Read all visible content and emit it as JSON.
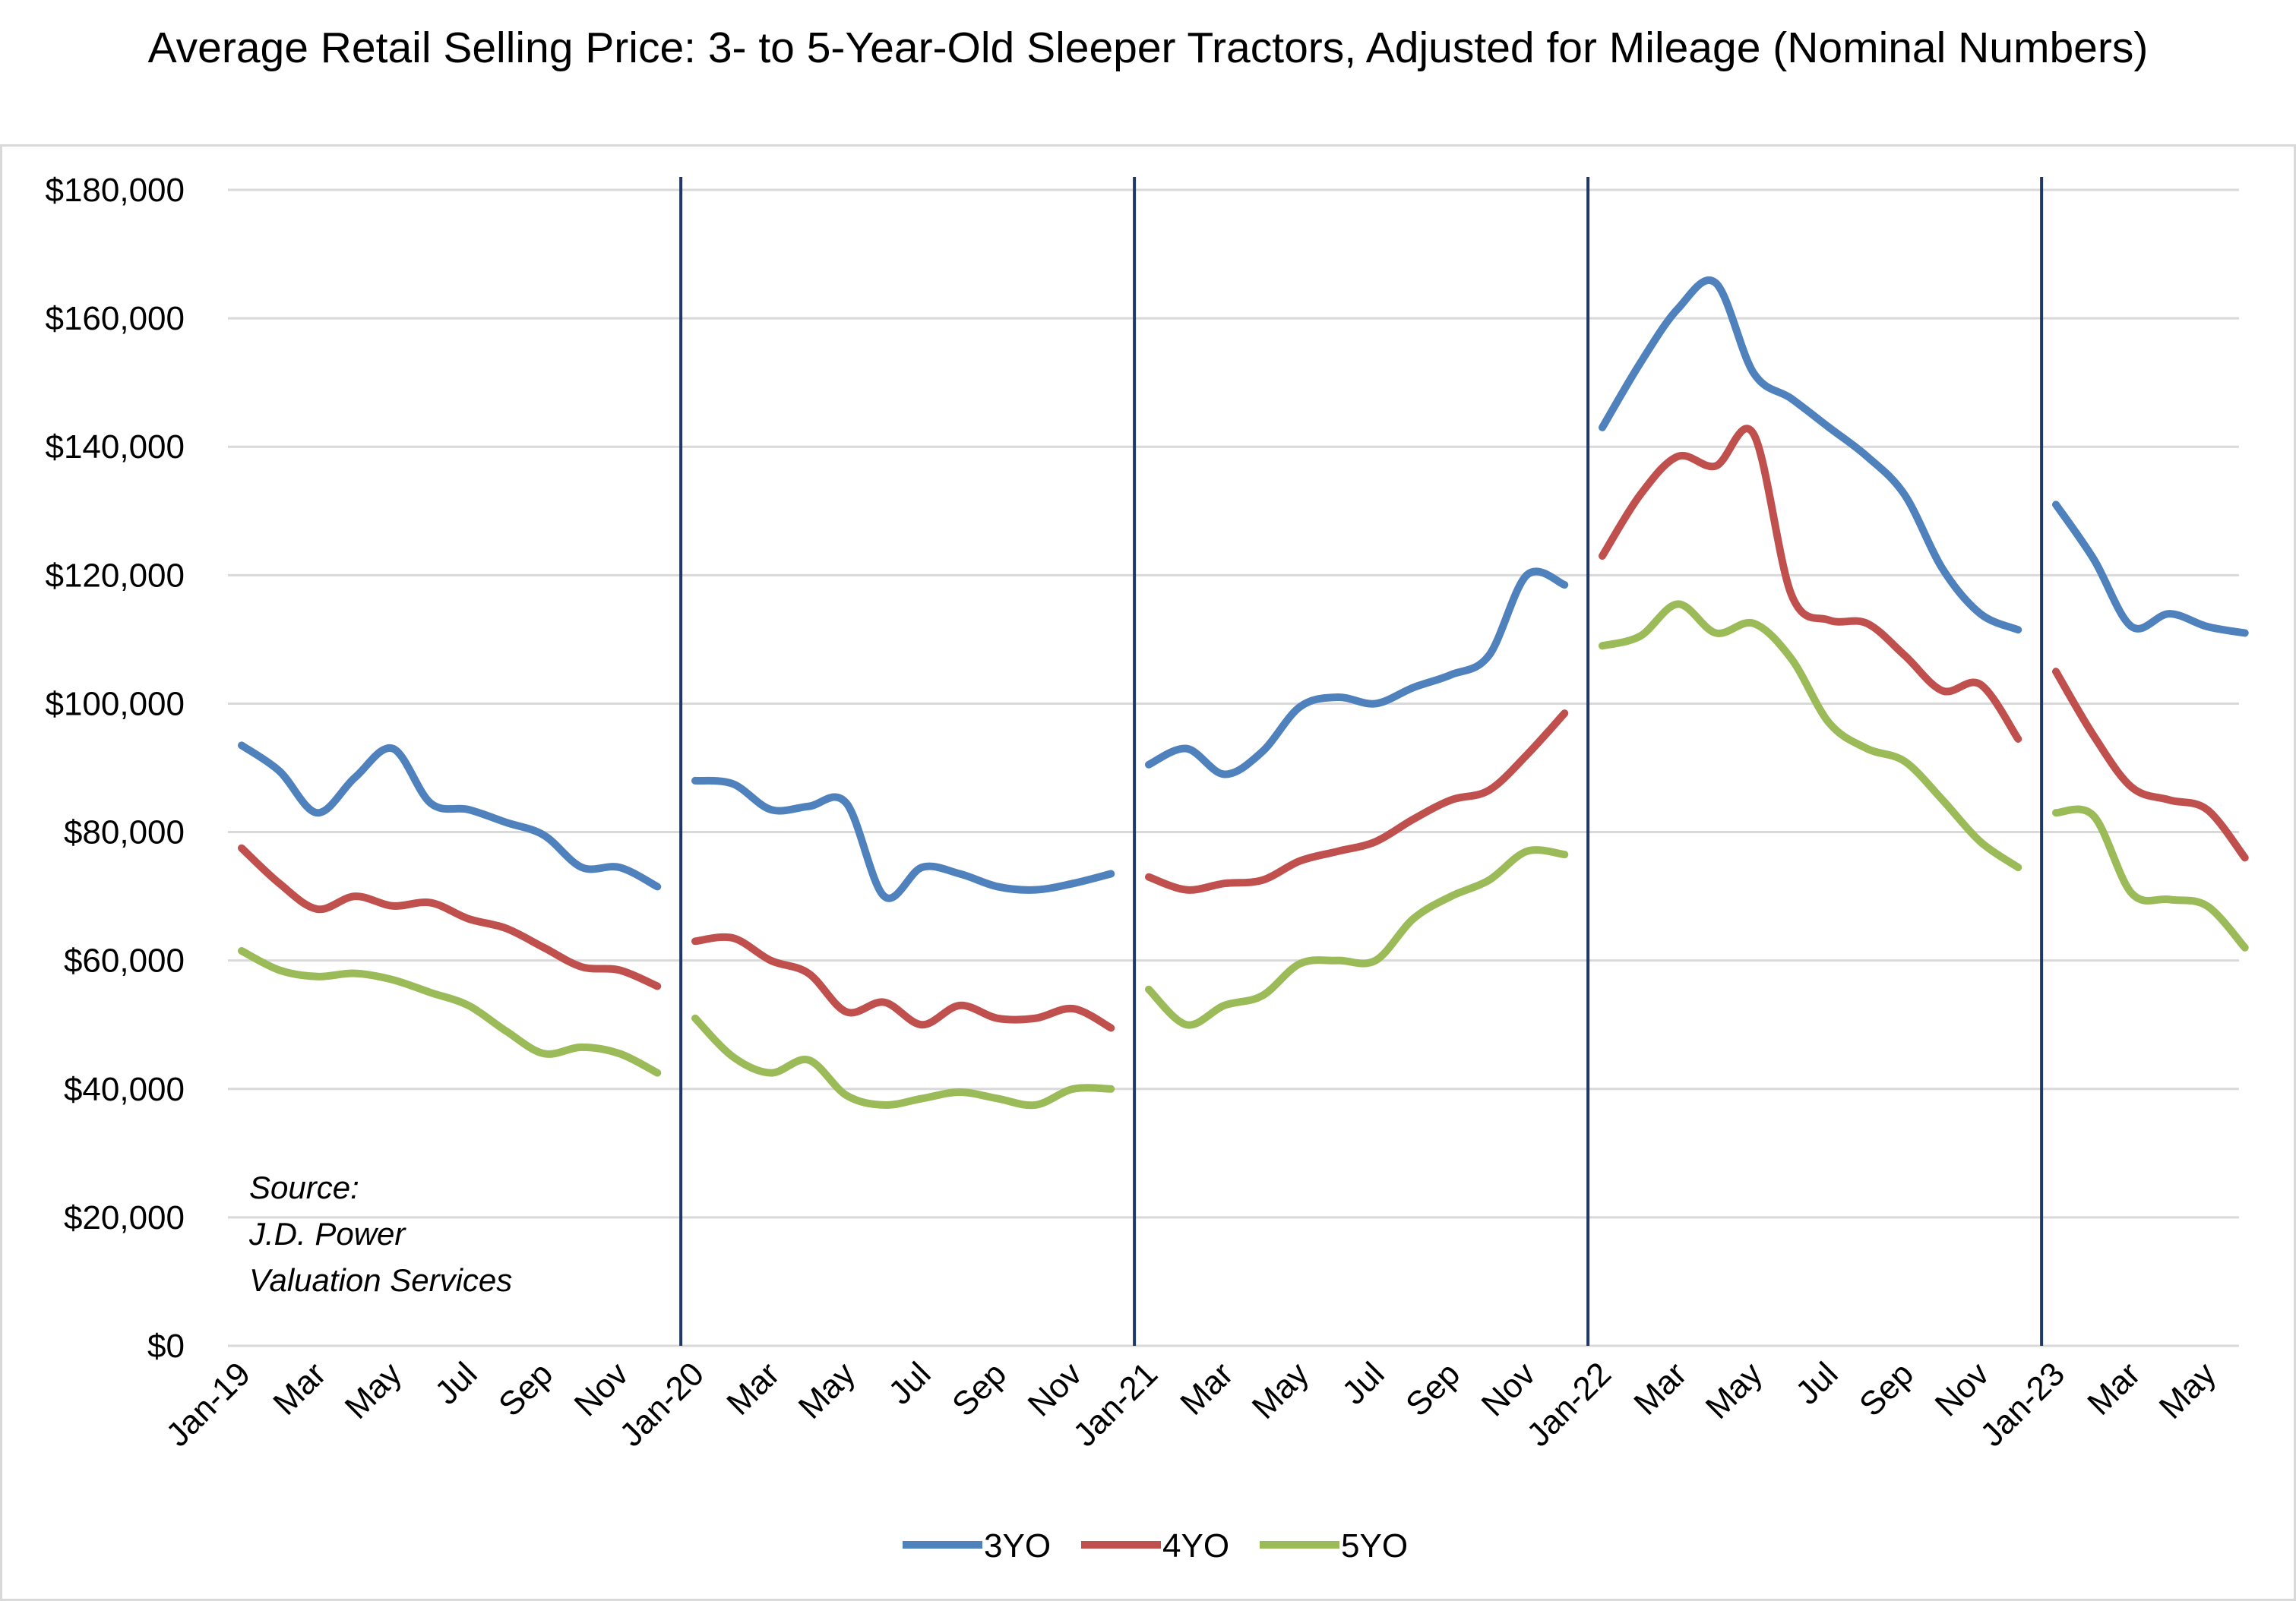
{
  "title": "Average Retail Selling Price: 3- to 5-Year-Old Sleeper Tractors, Adjusted for Mileage (Nominal Numbers)",
  "chart_data": {
    "type": "line",
    "title": "Average Retail Selling Price: 3- to 5-Year-Old Sleeper Tractors, Adjusted for Mileage (Nominal Numbers)",
    "xlabel": "",
    "ylabel": "",
    "ylim": [
      0,
      180000
    ],
    "yticks": [
      0,
      20000,
      40000,
      60000,
      80000,
      100000,
      120000,
      140000,
      160000,
      180000
    ],
    "ytick_labels": [
      "$0",
      "$20,000",
      "$40,000",
      "$60,000",
      "$80,000",
      "$100,000",
      "$120,000",
      "$140,000",
      "$160,000",
      "$180,000"
    ],
    "grid": true,
    "legend_position": "bottom",
    "x": [
      "Jan-19",
      "Feb-19",
      "Mar-19",
      "Apr-19",
      "May-19",
      "Jun-19",
      "Jul-19",
      "Aug-19",
      "Sep-19",
      "Oct-19",
      "Nov-19",
      "Dec-19",
      "Jan-20",
      "Feb-20",
      "Mar-20",
      "Apr-20",
      "May-20",
      "Jun-20",
      "Jul-20",
      "Aug-20",
      "Sep-20",
      "Oct-20",
      "Nov-20",
      "Dec-20",
      "Jan-21",
      "Feb-21",
      "Mar-21",
      "Apr-21",
      "May-21",
      "Jun-21",
      "Jul-21",
      "Aug-21",
      "Sep-21",
      "Oct-21",
      "Nov-21",
      "Dec-21",
      "Jan-22",
      "Feb-22",
      "Mar-22",
      "Apr-22",
      "May-22",
      "Jun-22",
      "Jul-22",
      "Aug-22",
      "Sep-22",
      "Oct-22",
      "Nov-22",
      "Dec-22",
      "Jan-23",
      "Feb-23",
      "Mar-23",
      "Apr-23",
      "May-23",
      "Jun-23"
    ],
    "x_tick_labels": [
      "Jan-19",
      "Mar",
      "May",
      "Jul",
      "Sep",
      "Nov",
      "Jan-20",
      "Mar",
      "May",
      "Jul",
      "Sep",
      "Nov",
      "Jan-21",
      "Mar",
      "May",
      "Jul",
      "Sep",
      "Nov",
      "Jan-22",
      "Mar",
      "May",
      "Jul",
      "Sep",
      "Nov",
      "Jan-23",
      "Mar",
      "May"
    ],
    "year_dividers": [
      "Jan-20",
      "Jan-21",
      "Jan-22",
      "Jan-23"
    ],
    "series": [
      {
        "name": "3YO",
        "color": "#4f81bd",
        "values": [
          93500,
          89500,
          83000,
          88500,
          93000,
          84500,
          83500,
          81500,
          79500,
          74500,
          74500,
          71500,
          88000,
          87500,
          83500,
          84000,
          84500,
          70000,
          74500,
          73500,
          71500,
          71000,
          72000,
          73500,
          90500,
          93000,
          89000,
          92500,
          99500,
          101000,
          100000,
          102500,
          104500,
          107500,
          120000,
          118500,
          143000,
          153000,
          161500,
          165500,
          151500,
          147500,
          143000,
          138500,
          132500,
          121000,
          114000,
          111500,
          131000,
          122500,
          112000,
          114000,
          112000,
          111000
        ]
      },
      {
        "name": "4YO",
        "color": "#c0504d",
        "values": [
          77500,
          72000,
          68000,
          70000,
          68500,
          69000,
          66500,
          65000,
          62000,
          59000,
          58500,
          56000,
          63000,
          63500,
          60000,
          58000,
          52000,
          53500,
          50000,
          53000,
          51000,
          51000,
          52500,
          49500,
          73000,
          71000,
          72000,
          72500,
          75500,
          77000,
          78500,
          82000,
          85000,
          86500,
          92000,
          98500,
          123000,
          132500,
          138500,
          137000,
          142000,
          117000,
          113000,
          112500,
          107500,
          102000,
          103000,
          94500,
          105000,
          95000,
          87000,
          85000,
          83500,
          76000
        ]
      },
      {
        "name": "5YO",
        "color": "#9bbb59",
        "values": [
          61500,
          58500,
          57500,
          58000,
          57000,
          55000,
          53000,
          49000,
          45500,
          46500,
          45500,
          42500,
          51000,
          45000,
          42500,
          44500,
          39000,
          37500,
          38500,
          39500,
          38500,
          37500,
          40000,
          40000,
          55500,
          50000,
          53000,
          54500,
          59500,
          60000,
          60000,
          66500,
          70000,
          72500,
          77000,
          76500,
          109000,
          110500,
          115500,
          111000,
          112500,
          107000,
          97000,
          93000,
          91000,
          85000,
          78500,
          74500,
          83000,
          82500,
          70500,
          69500,
          68500,
          62000
        ]
      }
    ],
    "annotation_lines": [
      "Source:",
      "J.D. Power",
      "Valuation Services"
    ]
  }
}
